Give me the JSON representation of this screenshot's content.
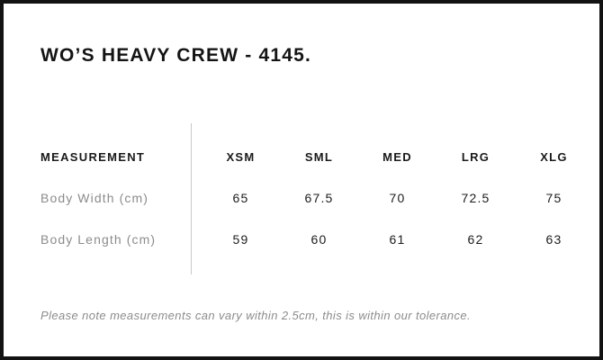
{
  "title": "WO’S HEAVY CREW - 4145.",
  "table": {
    "measurement_header": "MEASUREMENT",
    "columns": [
      "XSM",
      "SML",
      "MED",
      "LRG",
      "XLG"
    ],
    "rows": [
      {
        "label": "Body Width (cm)",
        "values": [
          "65",
          "67.5",
          "70",
          "72.5",
          "75"
        ]
      },
      {
        "label": "Body Length (cm)",
        "values": [
          "59",
          "60",
          "61",
          "62",
          "63"
        ]
      }
    ]
  },
  "footer_note": "Please note measurements can vary within 2.5cm, this is within our tolerance.",
  "colors": {
    "background": "#ffffff",
    "border": "#121212",
    "heading_text": "#141414",
    "value_text": "#1c1c1c",
    "muted_text": "#8c8c8c",
    "divider": "#c8c8c8"
  },
  "chart_data": {
    "type": "table",
    "title": "WO’S HEAVY CREW - 4145.",
    "columns": [
      "MEASUREMENT",
      "XSM",
      "SML",
      "MED",
      "LRG",
      "XLG"
    ],
    "rows": [
      [
        "Body Width (cm)",
        65,
        67.5,
        70,
        72.5,
        75
      ],
      [
        "Body Length (cm)",
        59,
        60,
        61,
        62,
        63
      ]
    ],
    "units": "cm",
    "note": "Please note measurements can vary within 2.5cm, this is within our tolerance."
  }
}
